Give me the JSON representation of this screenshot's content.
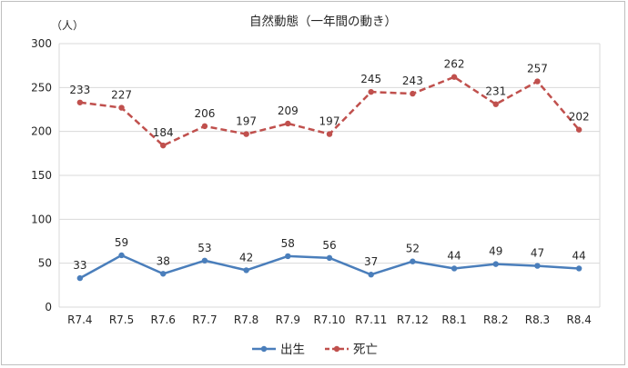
{
  "chart_data": {
    "type": "line",
    "title": "自然動態（一年間の動き）",
    "ylabel": "（人）",
    "xlabel": "",
    "ylim": [
      0,
      300
    ],
    "yticks": [
      0,
      50,
      100,
      150,
      200,
      250,
      300
    ],
    "grid": true,
    "legend_position": "bottom",
    "categories": [
      "R7.4",
      "R7.5",
      "R7.6",
      "R7.7",
      "R7.8",
      "R7.9",
      "R7.10",
      "R7.11",
      "R7.12",
      "R8.1",
      "R8.2",
      "R8.3",
      "R8.4"
    ],
    "series": [
      {
        "name": "出生",
        "color": "#4a7ebb",
        "style": "solid",
        "values": [
          33,
          59,
          38,
          53,
          42,
          58,
          56,
          37,
          52,
          44,
          49,
          47,
          44
        ]
      },
      {
        "name": "死亡",
        "color": "#c0504d",
        "style": "dashed",
        "values": [
          233,
          227,
          184,
          206,
          197,
          209,
          197,
          245,
          243,
          262,
          231,
          257,
          202
        ]
      }
    ]
  }
}
